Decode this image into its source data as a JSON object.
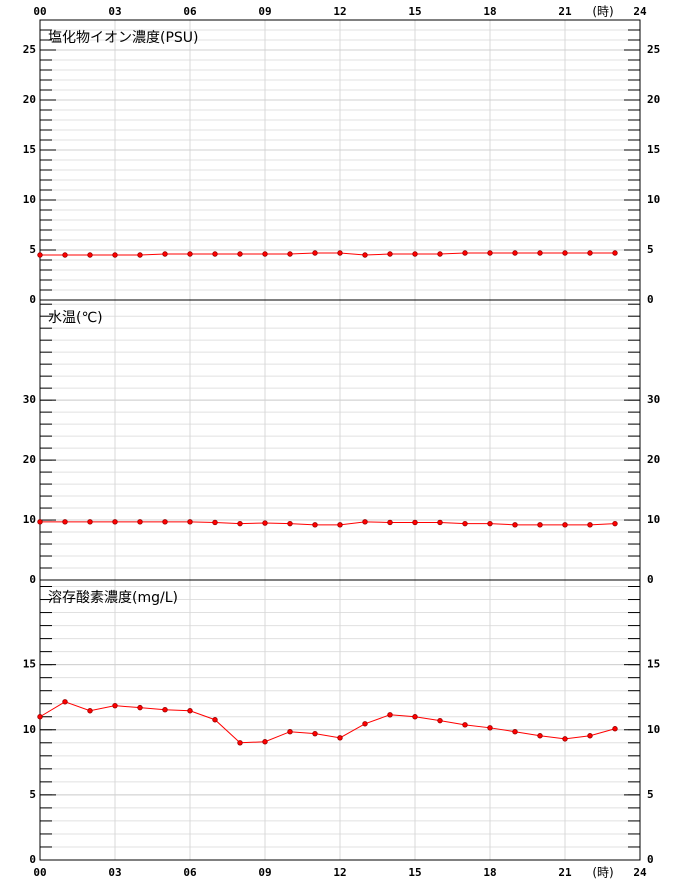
{
  "chart_data": [
    {
      "type": "line",
      "title": "塩化物イオン濃度(PSU)",
      "x_label": "(時)",
      "x": [
        0,
        1,
        2,
        3,
        4,
        5,
        6,
        7,
        8,
        9,
        10,
        11,
        12,
        13,
        14,
        15,
        16,
        17,
        18,
        19,
        20,
        21,
        22,
        23
      ],
      "values": [
        4.5,
        4.5,
        4.5,
        4.5,
        4.5,
        4.6,
        4.6,
        4.6,
        4.6,
        4.6,
        4.6,
        4.7,
        4.7,
        4.5,
        4.6,
        4.6,
        4.6,
        4.7,
        4.7,
        4.7,
        4.7,
        4.7,
        4.7,
        4.7
      ],
      "color": "#ff0000",
      "xlim": [
        0,
        24
      ],
      "xticks": [
        {
          "value": 0,
          "label": "00"
        },
        {
          "value": 3,
          "label": "03"
        },
        {
          "value": 6,
          "label": "06"
        },
        {
          "value": 9,
          "label": "09"
        },
        {
          "value": 12,
          "label": "12"
        },
        {
          "value": 15,
          "label": "15"
        },
        {
          "value": 18,
          "label": "18"
        },
        {
          "value": 21,
          "label": "21"
        },
        24
      ],
      "ylim": [
        0,
        28
      ],
      "yticks": [
        0,
        5,
        10,
        15,
        20,
        25
      ],
      "grid": true
    },
    {
      "type": "line",
      "title": "水温(℃)",
      "x": [
        0,
        1,
        2,
        3,
        4,
        5,
        6,
        7,
        8,
        9,
        10,
        11,
        12,
        13,
        14,
        15,
        16,
        17,
        18,
        19,
        20,
        21,
        22,
        23
      ],
      "values": [
        9.7,
        9.7,
        9.7,
        9.7,
        9.7,
        9.7,
        9.7,
        9.6,
        9.4,
        9.5,
        9.4,
        9.2,
        9.2,
        9.7,
        9.6,
        9.6,
        9.6,
        9.4,
        9.4,
        9.2,
        9.2,
        9.2,
        9.2,
        9.4
      ],
      "color": "#ff0000",
      "xlim": [
        0,
        24
      ],
      "ylim": [
        0,
        46.7
      ],
      "yticks": [
        0,
        10,
        20,
        30
      ],
      "grid": true
    },
    {
      "type": "line",
      "title": "溶存酸素濃度(mg/L)",
      "x_label": "(時)",
      "x": [
        0,
        1,
        2,
        3,
        4,
        5,
        6,
        7,
        8,
        9,
        10,
        11,
        12,
        13,
        14,
        15,
        16,
        17,
        18,
        19,
        20,
        21,
        22,
        23
      ],
      "values": [
        11.0,
        12.15,
        11.46,
        11.85,
        11.7,
        11.54,
        11.46,
        10.77,
        9.0,
        9.08,
        9.85,
        9.7,
        9.38,
        10.46,
        11.15,
        11.0,
        10.7,
        10.38,
        10.15,
        9.85,
        9.54,
        9.3,
        9.54,
        10.08
      ],
      "color": "#ff0000",
      "xlim": [
        0,
        24
      ],
      "xticks": [
        {
          "value": 0,
          "label": "00"
        },
        {
          "value": 3,
          "label": "03"
        },
        {
          "value": 6,
          "label": "06"
        },
        {
          "value": 9,
          "label": "09"
        },
        {
          "value": 12,
          "label": "12"
        },
        {
          "value": 15,
          "label": "15"
        },
        {
          "value": 18,
          "label": "18"
        },
        {
          "value": 21,
          "label": "21"
        },
        24
      ],
      "ylim": [
        0,
        21.5
      ],
      "yticks": [
        0,
        5,
        10,
        15
      ],
      "grid": true
    }
  ]
}
